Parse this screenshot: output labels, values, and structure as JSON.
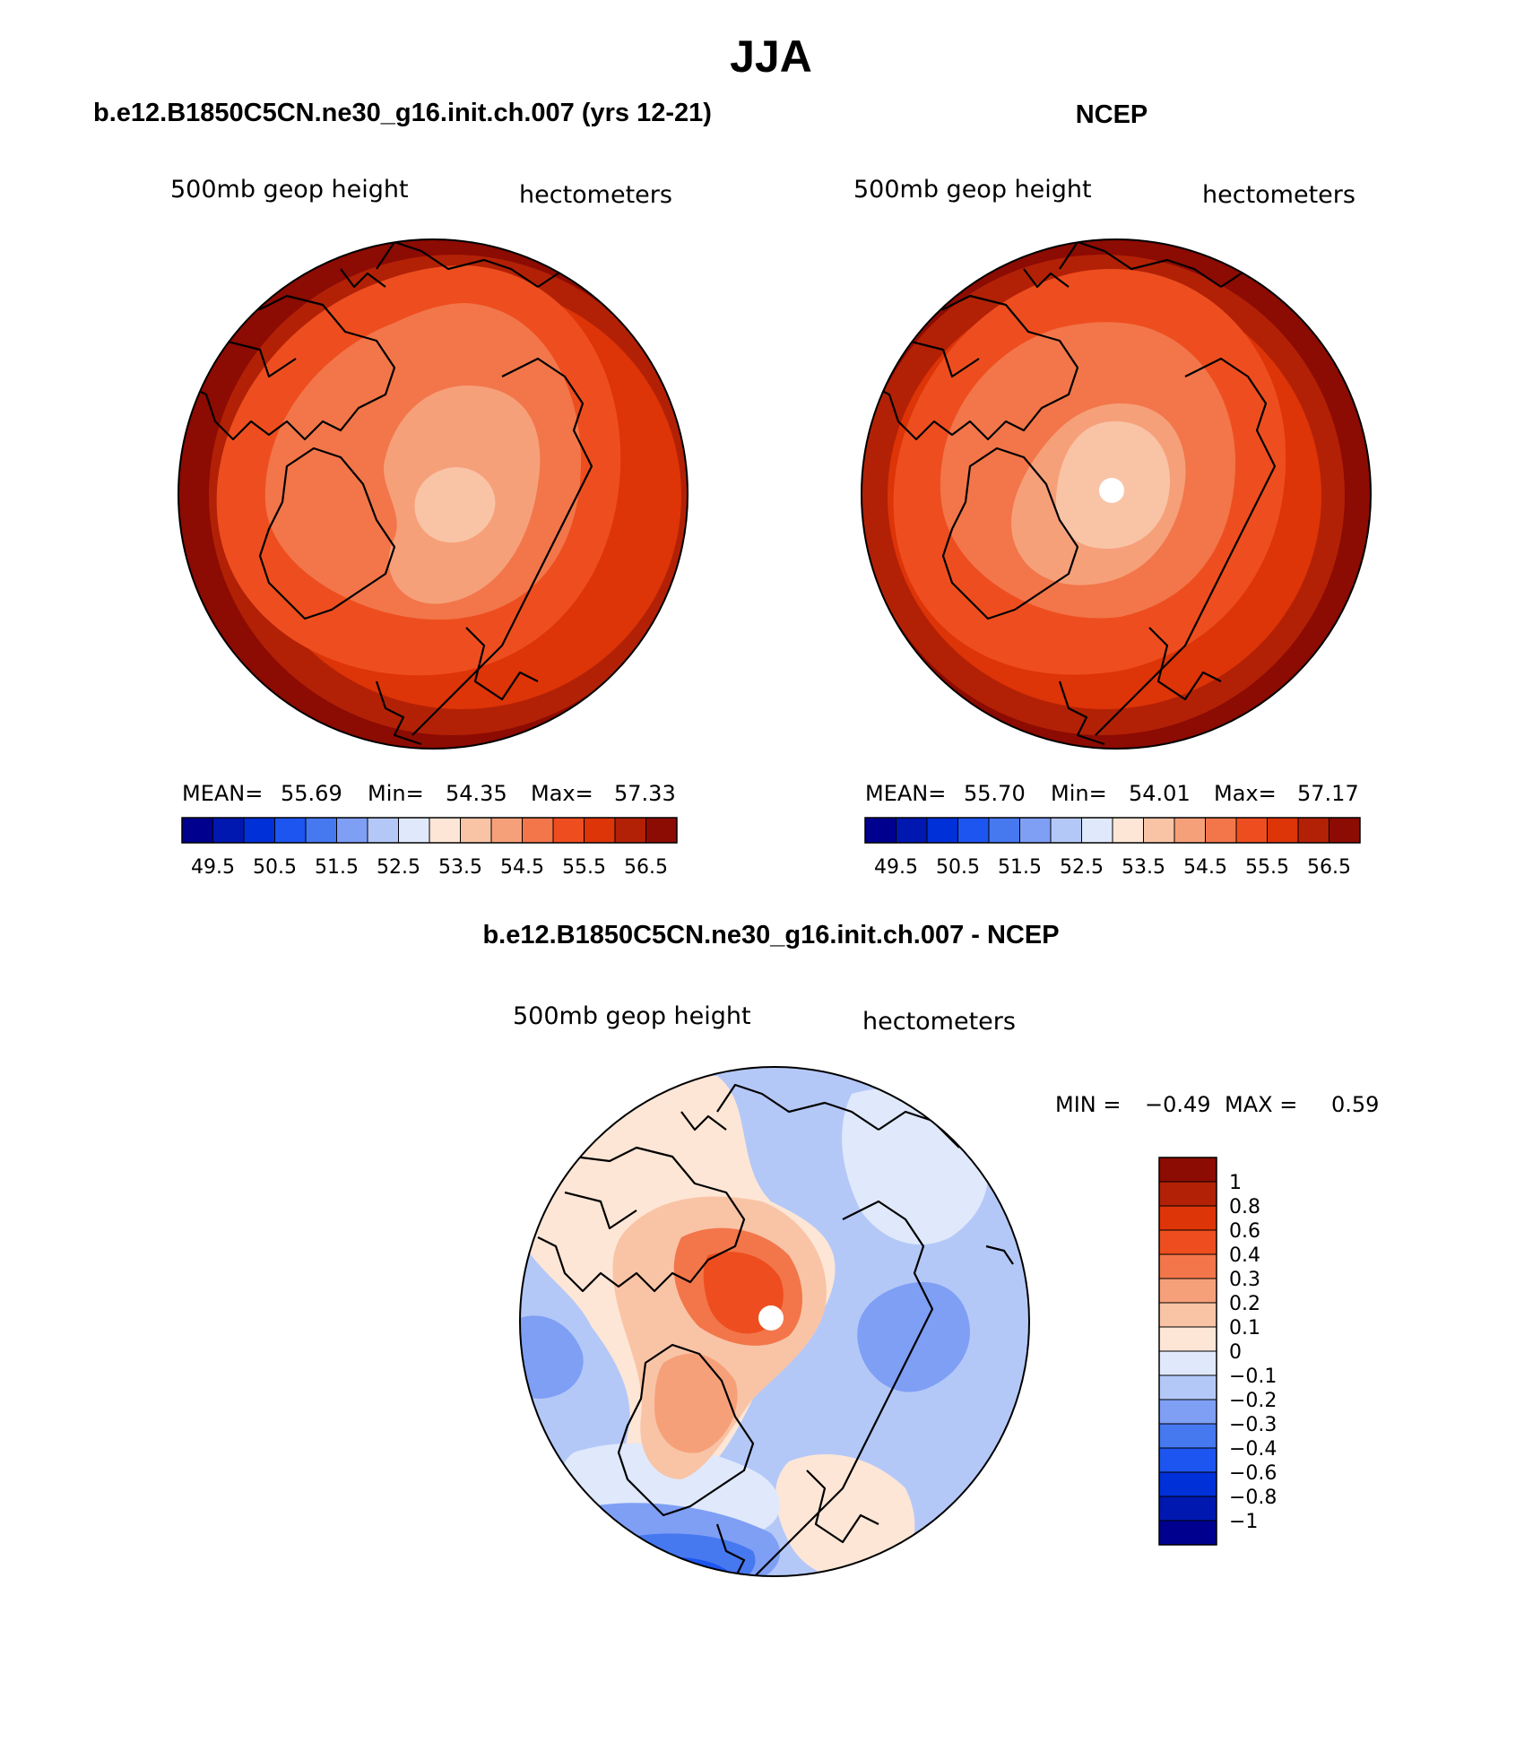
{
  "page": {
    "title": "JJA"
  },
  "chart_data": [
    {
      "type": "contour-map",
      "projection": "north-polar-stereographic",
      "case_title": "b.e12.B1850C5CN.ne30_g16.init.ch.007 (yrs 12-21)",
      "variable": "500mb geop height",
      "units": "hectometers",
      "stats": {
        "mean_label": "MEAN=",
        "mean_value": "55.69",
        "min_label": "Min=",
        "min_value": "54.35",
        "max_label": "Max=",
        "max_value": "57.33"
      },
      "levels": [
        "49.5",
        "50.5",
        "51.5",
        "52.5",
        "53.5",
        "54.5",
        "55.5",
        "56.5"
      ],
      "colors": [
        "#00008f",
        "#0018b0",
        "#0030d8",
        "#1d55f0",
        "#4678f0",
        "#7f9ff5",
        "#b4c8f8",
        "#dfe9fb",
        "#fde6d6",
        "#f9c4a6",
        "#f6a07a",
        "#f2764a",
        "#ee4e1f",
        "#dd3408",
        "#b22106",
        "#8c0b02"
      ],
      "field_rings": [
        11,
        10,
        9,
        9,
        8
      ]
    },
    {
      "type": "contour-map",
      "projection": "north-polar-stereographic",
      "case_title": "NCEP",
      "variable": "500mb geop height",
      "units": "hectometers",
      "stats": {
        "mean_label": "MEAN=",
        "mean_value": "55.70",
        "min_label": "Min=",
        "min_value": "54.01",
        "max_label": "Max=",
        "max_value": "57.17"
      },
      "levels": [
        "49.5",
        "50.5",
        "51.5",
        "52.5",
        "53.5",
        "54.5",
        "55.5",
        "56.5"
      ],
      "colors": [
        "#00008f",
        "#0018b0",
        "#0030d8",
        "#1d55f0",
        "#4678f0",
        "#7f9ff5",
        "#b4c8f8",
        "#dfe9fb",
        "#fde6d6",
        "#f9c4a6",
        "#f6a07a",
        "#f2764a",
        "#ee4e1f",
        "#dd3408",
        "#b22106",
        "#8c0b02"
      ],
      "field_rings": [
        11,
        10,
        9,
        9,
        8
      ]
    },
    {
      "type": "contour-map",
      "projection": "north-polar-stereographic",
      "case_title": "b.e12.B1850C5CN.ne30_g16.init.ch.007 - NCEP",
      "variable": "500mb geop height",
      "units": "hectometers",
      "stats": {
        "min_label": "MIN =",
        "min_value": "−0.49",
        "max_label": "MAX =",
        "max_value": "0.59"
      },
      "levels": [
        "1",
        "0.8",
        "0.6",
        "0.4",
        "0.3",
        "0.2",
        "0.1",
        "0",
        "−0.1",
        "−0.2",
        "−0.3",
        "−0.4",
        "−0.6",
        "−0.8",
        "−1"
      ],
      "colors": [
        "#8c0b02",
        "#b22106",
        "#dd3408",
        "#ee4e1f",
        "#f2764a",
        "#f6a07a",
        "#f9c4a6",
        "#fde6d6",
        "#dfe9fb",
        "#b4c8f8",
        "#7f9ff5",
        "#4678f0",
        "#1d55f0",
        "#0030d8",
        "#0018b0",
        "#00008f"
      ]
    }
  ]
}
